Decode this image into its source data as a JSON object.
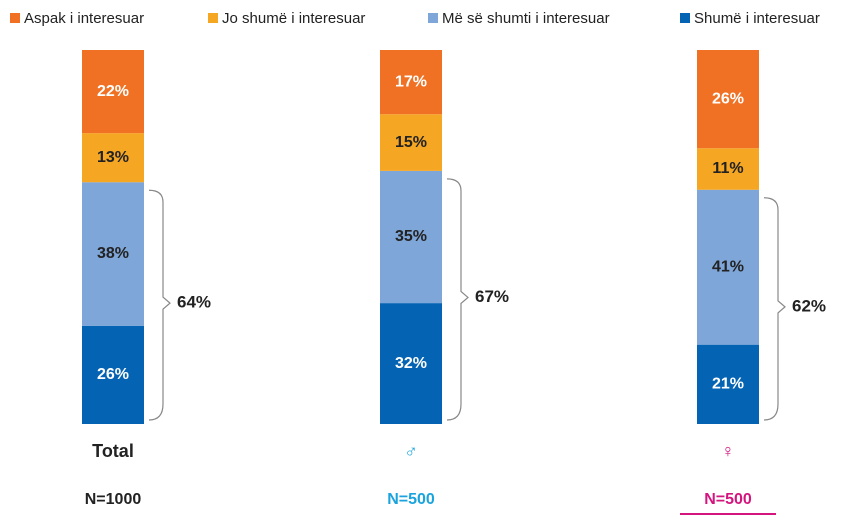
{
  "chart_data": {
    "type": "stacked_bar",
    "categories": [
      "Total",
      "♂",
      "♀"
    ],
    "category_colors": [
      "#222222",
      "#1aa3dd",
      "#d4157e"
    ],
    "sample_sizes": [
      "N=1000",
      "N=500",
      "N=500"
    ],
    "series": [
      {
        "name": "Aspak i interesuar",
        "color": "#f07123",
        "label_color": "#ffffff",
        "values": [
          22,
          17,
          26
        ],
        "value_labels": [
          "22%",
          "17%",
          "26%"
        ]
      },
      {
        "name": "Jo shumë i interesuar",
        "color": "#f5a623",
        "label_color": "#222222",
        "values": [
          13,
          15,
          11
        ],
        "value_labels": [
          "13%",
          "15%",
          "11%"
        ]
      },
      {
        "name": "Më së shumti i interesuar",
        "color": "#7ea6d8",
        "label_color": "#222222",
        "values": [
          38,
          35,
          41
        ],
        "value_labels": [
          "38%",
          "35%",
          "41%"
        ]
      },
      {
        "name": "Shumë i interesuar",
        "color": "#0563b4",
        "label_color": "#ffffff",
        "values": [
          26,
          32,
          21
        ],
        "value_labels": [
          "26%",
          "32%",
          "21%"
        ]
      }
    ],
    "bracket_labels": [
      "64%",
      "67%",
      "62%"
    ]
  }
}
